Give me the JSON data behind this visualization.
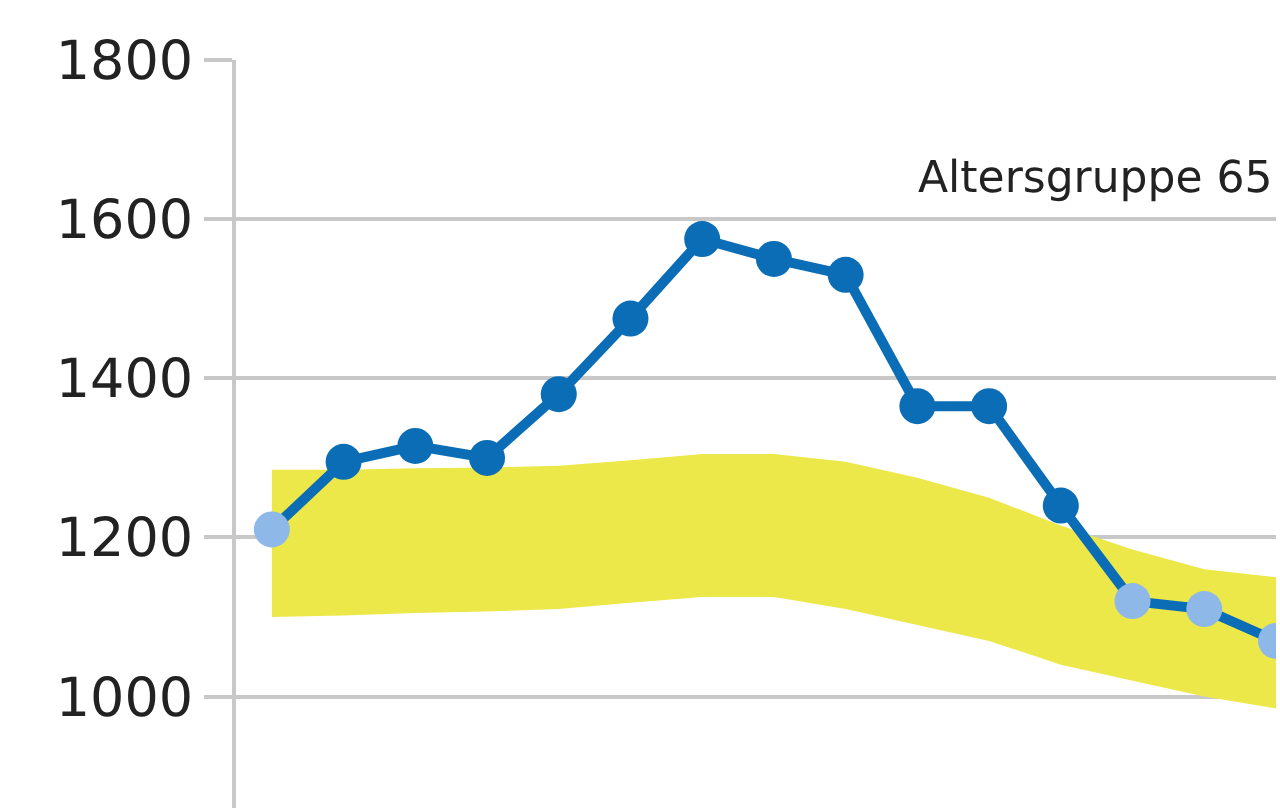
{
  "chart_data": {
    "type": "line",
    "annotations": [
      "Altersgruppe 65"
    ],
    "categories": [
      null,
      null,
      null,
      null,
      null,
      null,
      null,
      null,
      null,
      null,
      null,
      null,
      null,
      null,
      null
    ],
    "series": [
      {
        "color": "#0a6db5",
        "colors": [
          "#8db8e8",
          "#0a6db5",
          "#0a6db5",
          "#0a6db5",
          "#0a6db5",
          "#0a6db5",
          "#0a6db5",
          "#0a6db5",
          "#0a6db5",
          "#0a6db5",
          "#0a6db5",
          "#0a6db5",
          "#8db8e8",
          "#8db8e8",
          "#8db8e8"
        ],
        "values": [
          1210,
          1295,
          1315,
          1300,
          1380,
          1475,
          1575,
          1550,
          1530,
          1365,
          1365,
          1240,
          1120,
          1110,
          1070
        ],
        "lower": [
          1100,
          1102,
          1105,
          1107,
          1110,
          1118,
          1125,
          1125,
          1110,
          1090,
          1070,
          1040,
          1020,
          1000,
          985
        ],
        "upper": [
          1285,
          1285,
          1287,
          1288,
          1290,
          1297,
          1305,
          1305,
          1295,
          1275,
          1250,
          1215,
          1185,
          1160,
          1150
        ]
      }
    ],
    "ylim": [
      860,
      1800
    ],
    "yticks": [
      1000,
      1200,
      1400,
      1600,
      1800
    ],
    "grid": "y",
    "tick_labels": "y",
    "marker": "circle",
    "line_style": "solid"
  }
}
